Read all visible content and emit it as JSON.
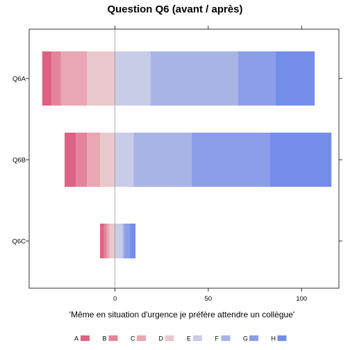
{
  "chart_data": {
    "type": "bar",
    "orientation": "horizontal",
    "stacked": "diverging",
    "title": "Question Q6 (avant / après)",
    "xlabel": "'Même en situation d'urgence je préfère attendre un collègue'",
    "ylabel": "",
    "xlim": [
      -46,
      120
    ],
    "xticks": [
      0,
      50,
      100
    ],
    "categories": [
      "Q6A",
      "Q6B",
      "Q6C"
    ],
    "series": [
      {
        "name": "A",
        "color": "#de6283",
        "values": [
          -5,
          -6,
          -2
        ]
      },
      {
        "name": "B",
        "color": "#e3849a",
        "values": [
          -5,
          -6,
          -1.5
        ]
      },
      {
        "name": "C",
        "color": "#e9a6b3",
        "values": [
          -14,
          -7,
          -1.5
        ]
      },
      {
        "name": "D",
        "color": "#e9c8cd",
        "values": [
          -15,
          -8,
          -3
        ]
      },
      {
        "name": "E",
        "color": "#c9cce7",
        "values": [
          19,
          10,
          4
        ]
      },
      {
        "name": "F",
        "color": "#a9b4e6",
        "values": [
          47,
          31,
          1
        ]
      },
      {
        "name": "G",
        "color": "#8d9ee8",
        "values": [
          20,
          42,
          3
        ]
      },
      {
        "name": "H",
        "color": "#748deb",
        "values": [
          21,
          33,
          3
        ]
      }
    ],
    "legend_position": "bottom",
    "grid": false
  }
}
